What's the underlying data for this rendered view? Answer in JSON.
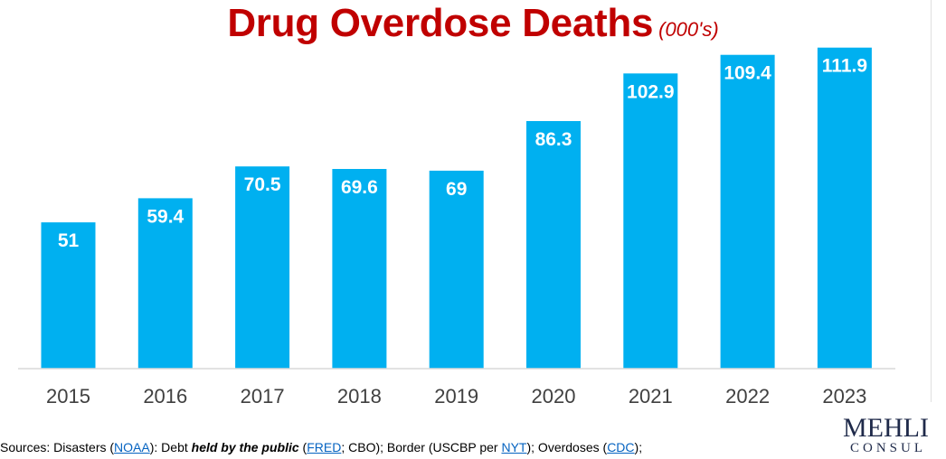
{
  "title": {
    "main": "Drug Overdose Deaths",
    "unit": "(000's)"
  },
  "chart_data": {
    "type": "bar",
    "title": "Drug Overdose Deaths (000's)",
    "categories": [
      "2015",
      "2016",
      "2017",
      "2018",
      "2019",
      "2020",
      "2021",
      "2022",
      "2023"
    ],
    "values": [
      51,
      59.4,
      70.5,
      69.6,
      69,
      86.3,
      102.9,
      109.4,
      111.9
    ],
    "labels": [
      "51",
      "59.4",
      "70.5",
      "69.6",
      "69",
      "86.3",
      "102.9",
      "109.4",
      "111.9"
    ],
    "bar_color": "#00b0f0",
    "data_label_color": "#ffffff",
    "axis_color": "#d9d9d9",
    "ylim": [
      0,
      120
    ],
    "grid": false,
    "legend": "none"
  },
  "footer": {
    "prefix": "Sources: Disasters (",
    "noaa": "NOAA",
    "after_noaa": "): Debt ",
    "held": "held by the public",
    "after_held": " (",
    "fred": "FRED",
    "after_fred": "; CBO); Border (USCBP per ",
    "nyt": "NYT",
    "after_nyt": "); Overdoses (",
    "cdc": "CDC",
    "end": ");"
  },
  "logo": {
    "top": "MEHLI",
    "bottom": "CONSUL"
  },
  "colors": {
    "title": "#c00000",
    "link": "#0563c1",
    "logo": "#1f2a4a"
  }
}
